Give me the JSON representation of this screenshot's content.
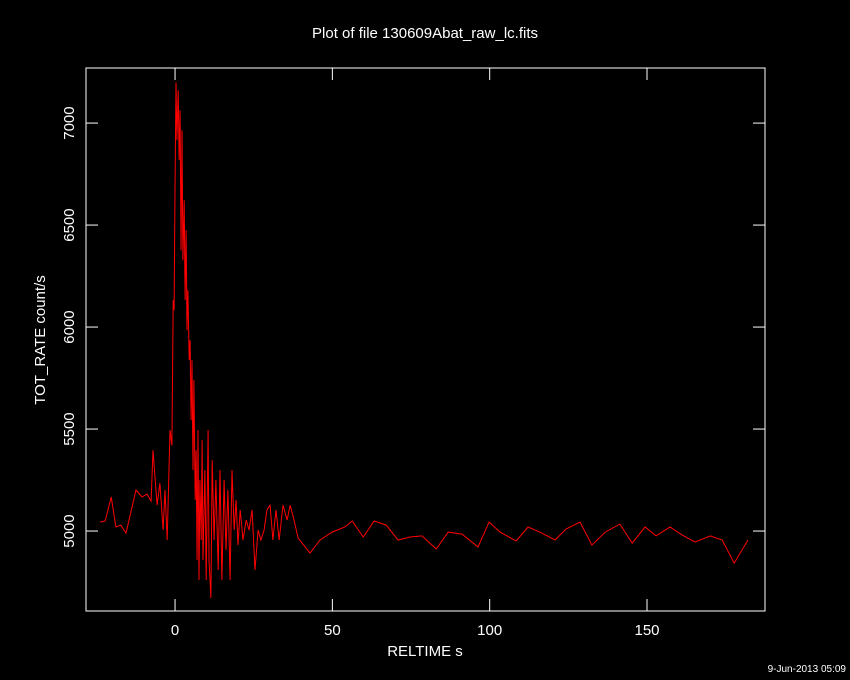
{
  "chart_data": {
    "type": "line",
    "title": "Plot of file 130609Abat_raw_lc.fits",
    "x_label": "RELTIME  s",
    "y_label": "TOT_RATE  count/s",
    "footer": "9-Jun-2013 05:09",
    "color": "#ff0000",
    "xlim": [
      -28.3,
      187.5
    ],
    "xticks": [
      0,
      50,
      100,
      150
    ],
    "ylim": [
      4608,
      7270
    ],
    "yticks": [
      5000,
      5500,
      6000,
      6500,
      7000
    ],
    "x": [
      -23.8,
      -22.2,
      -20.3,
      -18.8,
      -17.2,
      -15.6,
      -12.4,
      -10.5,
      -8.9,
      -7.6,
      -7,
      -5.7,
      -4.8,
      -3.8,
      -3.2,
      -2.5,
      -1.6,
      -1,
      -0.6,
      -0.3,
      0,
      0.3,
      0.6,
      1,
      1.3,
      1.6,
      1.9,
      2.2,
      2.5,
      2.9,
      3.2,
      3.5,
      3.8,
      4.1,
      4.5,
      4.8,
      5.1,
      5.4,
      5.7,
      6,
      6.4,
      6.7,
      7,
      7.3,
      7.6,
      7.9,
      8.3,
      8.6,
      8.9,
      9.5,
      9.9,
      10.5,
      10.8,
      11.4,
      11.8,
      12.4,
      13,
      13.7,
      14.3,
      14.9,
      15.6,
      16.2,
      16.8,
      17.5,
      18.1,
      18.8,
      19.4,
      20,
      20.7,
      21.6,
      22.6,
      23.5,
      24.5,
      25.4,
      26.4,
      27.3,
      28.3,
      29.2,
      30.2,
      31.1,
      32.1,
      33.1,
      34.3,
      35.6,
      36.6,
      37.8,
      39.1,
      42.9,
      46.1,
      49.9,
      54,
      56.3,
      59.8,
      63.3,
      67.1,
      70.9,
      74.7,
      78.5,
      83,
      86.8,
      91.2,
      96.3,
      99.8,
      103.3,
      108.4,
      112.2,
      115.9,
      120.8,
      124.3,
      128.7,
      132.5,
      136.7,
      141.4,
      145.3,
      149.4,
      152.9,
      157.3,
      161.2,
      165.3,
      170.1,
      173.9,
      177.7,
      182.1
    ],
    "values": [
      5044,
      5049,
      5167,
      5020,
      5029,
      4990,
      5201,
      5167,
      5181,
      5147,
      5397,
      5127,
      5235,
      5005,
      5201,
      4956,
      5495,
      5421,
      6132,
      6083,
      6671,
      7200,
      6916,
      7161,
      6818,
      7063,
      6377,
      6965,
      6328,
      6622,
      6132,
      6475,
      5985,
      6181,
      5838,
      5936,
      5544,
      5838,
      5299,
      5740,
      5152,
      5397,
      4858,
      5495,
      4760,
      5250,
      4956,
      5446,
      4858,
      5299,
      4760,
      5495,
      4858,
      4672,
      5348,
      4956,
      5250,
      4809,
      5299,
      4760,
      5250,
      4907,
      5201,
      4760,
      5299,
      5005,
      5152,
      4931,
      5103,
      4956,
      5054,
      5005,
      5103,
      4809,
      5005,
      4956,
      5005,
      5103,
      5127,
      4956,
      5103,
      4956,
      5127,
      5054,
      5127,
      5054,
      4966,
      4892,
      4956,
      4995,
      5020,
      5049,
      4971,
      5049,
      5029,
      4956,
      4971,
      4976,
      4912,
      4995,
      4985,
      4922,
      5044,
      4995,
      4951,
      5020,
      4995,
      4956,
      5010,
      5044,
      4931,
      4995,
      5034,
      4941,
      5020,
      4976,
      5020,
      4980,
      4946,
      4976,
      4956,
      4843,
      4956
    ]
  }
}
